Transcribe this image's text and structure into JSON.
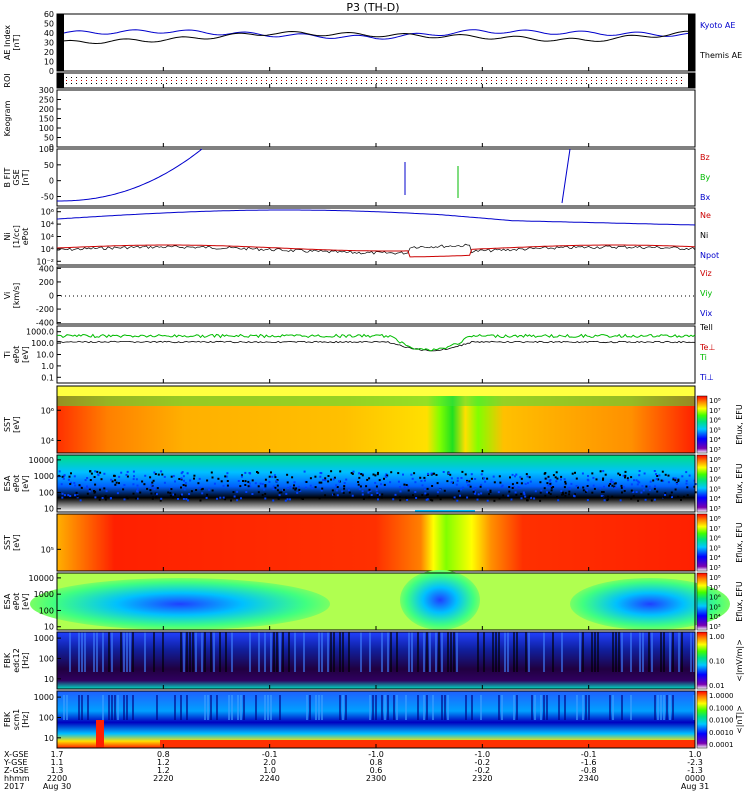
{
  "title": "P3 (TH-D)",
  "panels": [
    {
      "ylabel": [
        "AE Index",
        "[nT]"
      ],
      "ticks": [
        "60",
        "50",
        "40",
        "30",
        "20",
        "10",
        "0"
      ],
      "tickvals": [
        60,
        50,
        40,
        30,
        20,
        10,
        0
      ],
      "ylim": [
        0,
        60
      ]
    },
    {
      "ylabel": [
        "ROI"
      ],
      "ticks": [],
      "tickvals": []
    },
    {
      "ylabel": [
        "Keogram"
      ],
      "ticks": [
        "300",
        "250",
        "200",
        "150",
        "100",
        "50",
        "0"
      ],
      "tickvals": [
        300,
        250,
        200,
        150,
        100,
        50,
        0
      ],
      "ylim": [
        0,
        300
      ]
    },
    {
      "ylabel": [
        "B FIT",
        "GSE",
        "[nT]"
      ],
      "ticks": [
        "100",
        "50",
        "0",
        "-50"
      ],
      "tickvals": [
        100,
        50,
        0,
        -50
      ],
      "ylim": [
        -80,
        100
      ]
    },
    {
      "ylabel": [
        "Ni",
        "[1/cc]",
        "ePot"
      ],
      "ticks": [
        "10⁶",
        "10⁴",
        "10⁴",
        "10⁴",
        "10⁻²"
      ],
      "tickvals": [
        6,
        5,
        4,
        3,
        2
      ],
      "ylim": [
        1.7,
        6.3
      ]
    },
    {
      "ylabel": [
        "Vi",
        "[km/s]"
      ],
      "ticks": [
        "400",
        "200",
        "0",
        "-200",
        "-400"
      ],
      "tickvals": [
        400,
        200,
        0,
        -200,
        -400
      ],
      "ylim": [
        -420,
        420
      ]
    },
    {
      "ylabel": [
        "Ti",
        "ePot",
        "[eV]"
      ],
      "ticks": [
        "1000.0",
        "100.0",
        "10.0",
        "1.0",
        "0.1"
      ],
      "tickvals": [
        3,
        2,
        1,
        0,
        -1
      ],
      "ylim": [
        -1.5,
        3.5
      ]
    },
    {
      "ylabel": [
        "SST",
        "[eV]"
      ],
      "ticks": [
        "10⁶",
        "10⁴"
      ],
      "tickvals": [
        0.25,
        0.78
      ]
    },
    {
      "ylabel": [
        "ESA",
        "ePot",
        "[eV]"
      ],
      "ticks": [
        "10000",
        "1000",
        "100",
        "10"
      ],
      "tickvals": [
        4,
        3,
        2,
        1
      ],
      "ylim": [
        0.8,
        4.3
      ]
    },
    {
      "ylabel": [
        "SST",
        "[eV]"
      ],
      "ticks": [
        "10⁵"
      ],
      "tickvals": [
        0.62
      ]
    },
    {
      "ylabel": [
        "ESA",
        "ePot",
        "[eV]"
      ],
      "ticks": [
        "10000",
        "1000",
        "100",
        "10"
      ],
      "tickvals": [
        4,
        3,
        2,
        1
      ],
      "ylim": [
        0.8,
        4.3
      ]
    },
    {
      "ylabel": [
        "FBK",
        "edc12",
        "[Hz]"
      ],
      "ticks": [
        "1000",
        "100",
        "10"
      ],
      "tickvals": [
        3,
        2,
        1
      ],
      "ylim": [
        0.5,
        3.3
      ]
    },
    {
      "ylabel": [
        "FBK",
        "scm1",
        "[Hz]"
      ],
      "ticks": [
        "1000",
        "100",
        "10"
      ],
      "tickvals": [
        3,
        2,
        1
      ],
      "ylim": [
        0.5,
        3.3
      ]
    }
  ],
  "legends": {
    "ae": [
      "Kyoto AE",
      "Themis AE"
    ],
    "bfit": [
      "Bz",
      "By",
      "Bx"
    ],
    "ni": [
      "Ne",
      "Ni",
      "Npot"
    ],
    "vi": [
      "Viz",
      "Viy",
      "Vix"
    ],
    "ti": [
      "Tell",
      "Te⊥",
      "Ti",
      "Ti⊥"
    ]
  },
  "colorbars": [
    {
      "ticks": [
        "10⁸",
        "10⁷",
        "10⁶",
        "10⁵",
        "10⁴",
        "10³"
      ],
      "label": "Eflux, EFU"
    },
    {
      "ticks": [
        "10⁸",
        "10⁷",
        "10⁶",
        "10⁵",
        "10⁴",
        "10³"
      ],
      "label": "Eflux, EFU"
    },
    {
      "ticks": [
        "10⁸",
        "10⁷",
        "10⁶",
        "10⁵",
        "10⁴",
        "10³"
      ],
      "label": "Eflux, EFU"
    },
    {
      "ticks": [
        "10⁸",
        "10⁷",
        "10⁶",
        "10⁵",
        "10⁴",
        "10³"
      ],
      "label": "Eflux, EFU"
    },
    {
      "ticks": [
        "1.00",
        "0.10",
        "0.01"
      ],
      "label": "<|mV/m|>"
    },
    {
      "ticks": [
        "1.0000",
        "0.1000",
        "0.0100",
        "0.0010",
        "0.0001"
      ],
      "label": "<|nT|>"
    }
  ],
  "xaxis": {
    "rowlabels": [
      "X-GSE",
      "Y-GSE",
      "Z-GSE",
      "hhmm",
      "2017"
    ],
    "ticks": [
      {
        "v": [
          "1.7",
          "1.1",
          "1.3",
          "2200"
        ],
        "d": "Aug 30"
      },
      {
        "v": [
          "0.8",
          "1.2",
          "1.2",
          "2220"
        ],
        "d": ""
      },
      {
        "v": [
          "-0.1",
          "2.0",
          "1.0",
          "2240"
        ],
        "d": ""
      },
      {
        "v": [
          "-1.0",
          "0.8",
          "0.6",
          "2300"
        ],
        "d": ""
      },
      {
        "v": [
          "-1.0",
          "-0.2",
          "-0.2",
          "2320"
        ],
        "d": ""
      },
      {
        "v": [
          "-0.1",
          "-1.6",
          "-0.8",
          "2340"
        ],
        "d": ""
      },
      {
        "v": [
          "1.0",
          "-2.3",
          "-1.3",
          "0000"
        ],
        "d": "Aug 31"
      }
    ]
  },
  "colors": {
    "blue": "#0000cc",
    "red": "#cc0000",
    "green": "#00bb00",
    "black": "#000000"
  },
  "chart_data": {
    "type": "line",
    "title": "P3 (TH-D)",
    "x": [
      "2200",
      "2220",
      "2240",
      "2300",
      "2320",
      "2340",
      "0000"
    ],
    "series": [
      {
        "name": "Kyoto AE",
        "values": [
          40,
          42,
          38,
          35,
          42,
          40,
          38
        ]
      },
      {
        "name": "Themis AE",
        "values": [
          30,
          33,
          40,
          38,
          36,
          32,
          40
        ]
      }
    ],
    "ylabel": "AE Index",
    "ylim": [
      0,
      60
    ]
  }
}
